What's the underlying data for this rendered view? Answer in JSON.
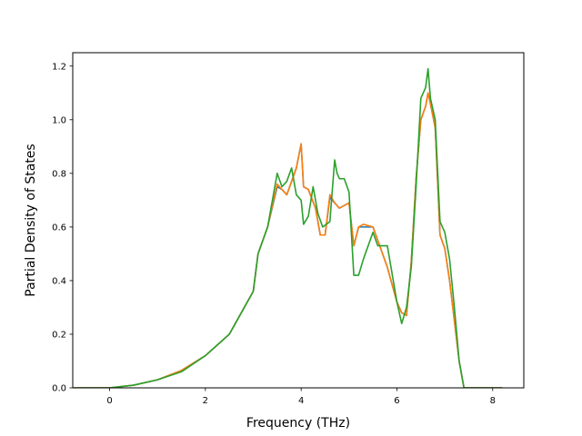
{
  "chart_data": {
    "type": "line",
    "title": "",
    "xlabel": "Frequency (THz)",
    "ylabel": "Partial Density of States",
    "xlim": [
      -0.77,
      8.65
    ],
    "ylim": [
      0.0,
      1.25
    ],
    "xticks": [
      0,
      2,
      4,
      6,
      8
    ],
    "xtick_labels": [
      "0",
      "2",
      "4",
      "6",
      "8"
    ],
    "yticks": [
      0.0,
      0.2,
      0.4,
      0.6,
      0.8,
      1.0,
      1.2
    ],
    "ytick_labels": [
      "0.0",
      "0.2",
      "0.4",
      "0.6",
      "0.8",
      "1.0",
      "1.2"
    ],
    "grid": false,
    "legend": "none",
    "series": [
      {
        "color": "#1f77b4",
        "x": [
          -0.75,
          0.0,
          0.5,
          1.0,
          1.5,
          2.0,
          2.5,
          3.0,
          3.1,
          3.3,
          3.5,
          3.6,
          3.7,
          3.8,
          3.9,
          4.0,
          4.05,
          4.15,
          4.3,
          4.4,
          4.5,
          4.6,
          4.7,
          4.8,
          5.0,
          5.1,
          5.2,
          5.3,
          5.5,
          5.6,
          5.8,
          6.0,
          6.1,
          6.2,
          6.3,
          6.4,
          6.5,
          6.6,
          6.65,
          6.7,
          6.8,
          6.9,
          7.0,
          7.1,
          7.2,
          7.3,
          7.4,
          7.5,
          8.2
        ],
        "y": [
          0.0,
          0.0,
          0.01,
          0.03,
          0.065,
          0.12,
          0.2,
          0.36,
          0.5,
          0.6,
          0.75,
          0.74,
          0.72,
          0.77,
          0.82,
          0.91,
          0.75,
          0.74,
          0.67,
          0.57,
          0.57,
          0.71,
          0.69,
          0.67,
          0.69,
          0.53,
          0.6,
          0.6,
          0.6,
          0.55,
          0.45,
          0.32,
          0.28,
          0.27,
          0.47,
          0.78,
          1.0,
          1.05,
          1.1,
          1.06,
          0.97,
          0.57,
          0.52,
          0.4,
          0.25,
          0.1,
          0.0,
          0.0,
          0.0
        ]
      },
      {
        "color": "#ff7f0e",
        "x": [
          -0.75,
          0.0,
          0.5,
          1.0,
          1.5,
          2.0,
          2.5,
          3.0,
          3.1,
          3.3,
          3.5,
          3.6,
          3.7,
          3.8,
          3.9,
          4.0,
          4.05,
          4.15,
          4.3,
          4.4,
          4.5,
          4.6,
          4.7,
          4.8,
          5.0,
          5.1,
          5.2,
          5.3,
          5.5,
          5.6,
          5.8,
          6.0,
          6.1,
          6.2,
          6.3,
          6.4,
          6.5,
          6.6,
          6.65,
          6.7,
          6.8,
          6.9,
          7.0,
          7.1,
          7.2,
          7.3,
          7.4,
          7.5,
          8.2
        ],
        "y": [
          0.0,
          0.0,
          0.01,
          0.03,
          0.065,
          0.12,
          0.2,
          0.36,
          0.5,
          0.6,
          0.76,
          0.74,
          0.72,
          0.77,
          0.82,
          0.91,
          0.75,
          0.74,
          0.67,
          0.57,
          0.57,
          0.72,
          0.69,
          0.67,
          0.69,
          0.53,
          0.6,
          0.61,
          0.6,
          0.55,
          0.45,
          0.32,
          0.28,
          0.27,
          0.47,
          0.78,
          1.0,
          1.05,
          1.1,
          1.06,
          0.97,
          0.57,
          0.52,
          0.4,
          0.25,
          0.1,
          0.0,
          0.0,
          0.0
        ]
      },
      {
        "color": "#2ca02c",
        "x": [
          -0.75,
          0.0,
          0.5,
          1.0,
          1.5,
          2.0,
          2.5,
          3.0,
          3.1,
          3.3,
          3.5,
          3.6,
          3.7,
          3.8,
          3.9,
          4.0,
          4.05,
          4.15,
          4.25,
          4.35,
          4.45,
          4.6,
          4.7,
          4.75,
          4.8,
          4.9,
          5.0,
          5.1,
          5.2,
          5.3,
          5.5,
          5.6,
          5.8,
          6.0,
          6.1,
          6.2,
          6.3,
          6.4,
          6.5,
          6.6,
          6.65,
          6.7,
          6.8,
          6.9,
          7.0,
          7.1,
          7.2,
          7.3,
          7.4,
          7.5,
          8.2
        ],
        "y": [
          0.0,
          0.0,
          0.01,
          0.03,
          0.06,
          0.12,
          0.2,
          0.36,
          0.5,
          0.6,
          0.8,
          0.75,
          0.77,
          0.82,
          0.72,
          0.7,
          0.61,
          0.64,
          0.75,
          0.65,
          0.6,
          0.62,
          0.85,
          0.8,
          0.78,
          0.78,
          0.73,
          0.42,
          0.42,
          0.48,
          0.58,
          0.53,
          0.53,
          0.32,
          0.24,
          0.3,
          0.45,
          0.75,
          1.08,
          1.12,
          1.19,
          1.08,
          1.0,
          0.62,
          0.58,
          0.48,
          0.3,
          0.1,
          0.0,
          0.0,
          0.0
        ]
      }
    ]
  }
}
